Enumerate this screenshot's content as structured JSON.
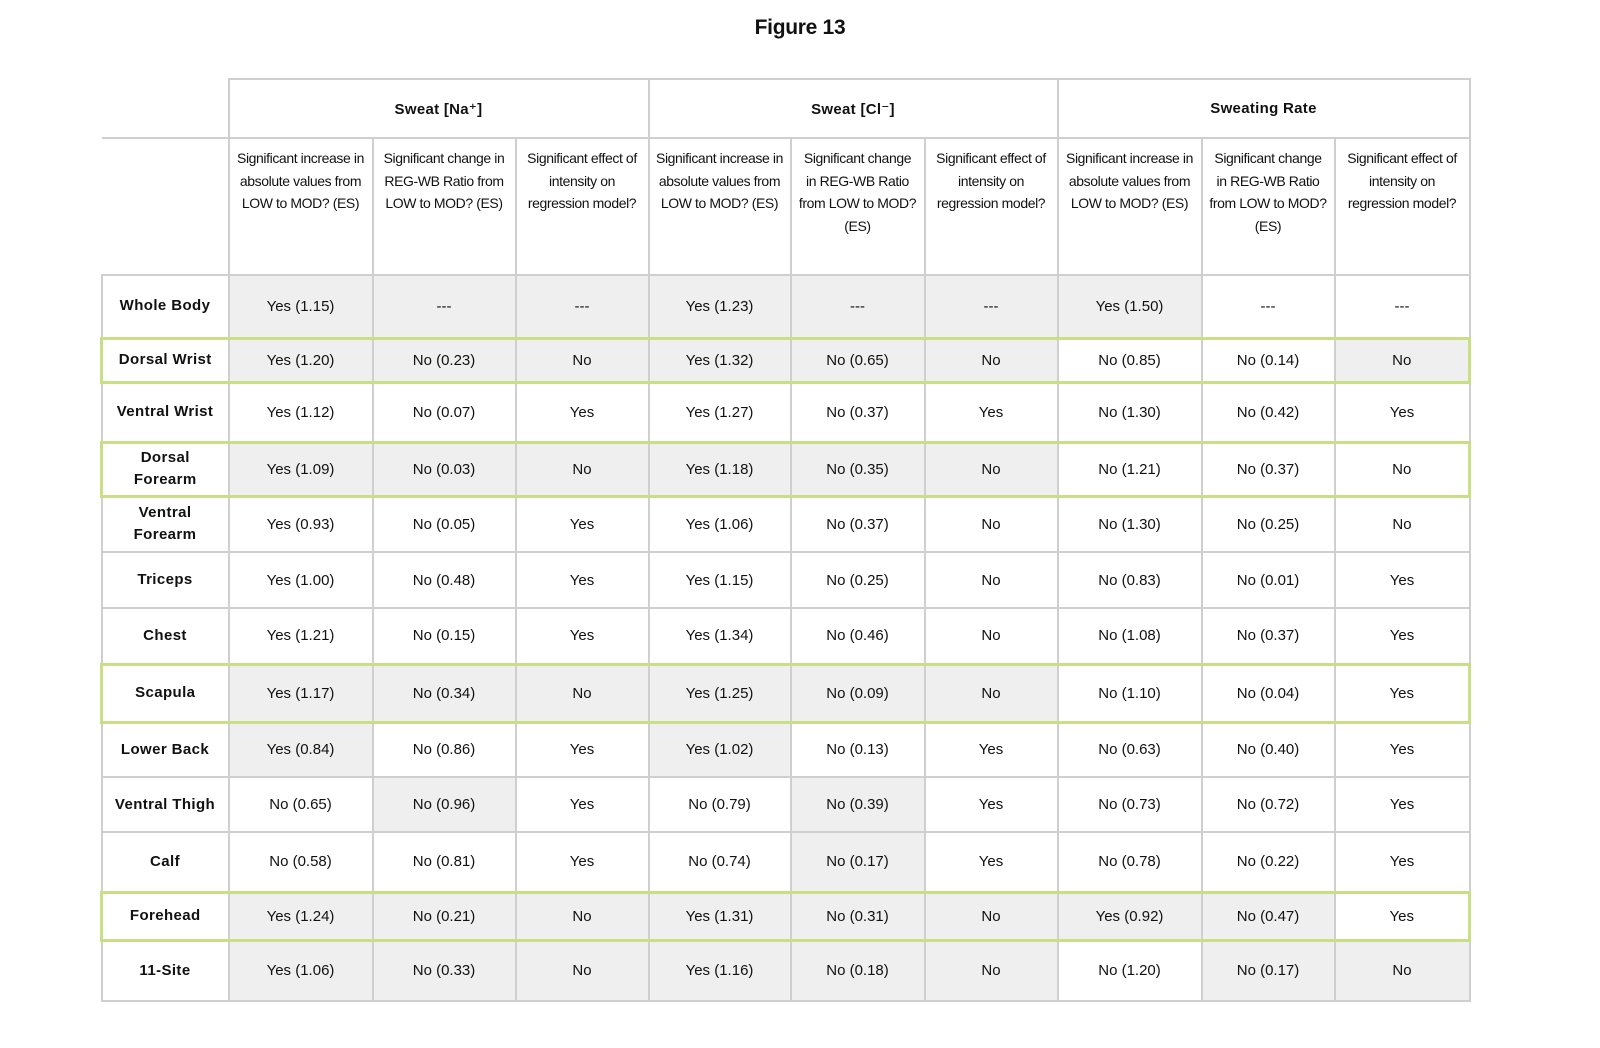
{
  "title": "Figure 13",
  "table": {
    "groups": [
      "Sweat [Na⁺]",
      "Sweat [Cl⁻]",
      "Sweating Rate"
    ],
    "subheaders": [
      "Significant increase in absolute values from LOW to MOD? (ES)",
      "Significant change in REG-WB Ratio from LOW to MOD? (ES)",
      "Significant effect of intensity on regression model?",
      "Significant increase in absolute values from LOW to MOD? (ES)",
      "Significant change in REG-WB Ratio from LOW to MOD? (ES)",
      "Significant effect of intensity on regression model?",
      "Significant increase in absolute values from LOW to MOD? (ES)",
      "Significant change in REG-WB Ratio from LOW to MOD? (ES)",
      "Significant effect of intensity on regression model?"
    ],
    "rows": [
      {
        "label": "Whole Body",
        "cells": [
          "Yes (1.15)",
          "---",
          "---",
          "Yes (1.23)",
          "---",
          "---",
          "Yes (1.50)",
          "---",
          "---"
        ]
      },
      {
        "label": "Dorsal Wrist",
        "cells": [
          "Yes (1.20)",
          "No (0.23)",
          "No",
          "Yes (1.32)",
          "No (0.65)",
          "No",
          "No (0.85)",
          "No (0.14)",
          "No"
        ]
      },
      {
        "label": "Ventral Wrist",
        "cells": [
          "Yes (1.12)",
          "No (0.07)",
          "Yes",
          "Yes (1.27)",
          "No (0.37)",
          "Yes",
          "No (1.30)",
          "No (0.42)",
          "Yes"
        ]
      },
      {
        "label": "Dorsal Forearm",
        "cells": [
          "Yes (1.09)",
          "No (0.03)",
          "No",
          "Yes (1.18)",
          "No (0.35)",
          "No",
          "No (1.21)",
          "No (0.37)",
          "No"
        ]
      },
      {
        "label": "Ventral Forearm",
        "cells": [
          "Yes (0.93)",
          "No (0.05)",
          "Yes",
          "Yes (1.06)",
          "No (0.37)",
          "No",
          "No (1.30)",
          "No (0.25)",
          "No"
        ]
      },
      {
        "label": "Triceps",
        "cells": [
          "Yes (1.00)",
          "No (0.48)",
          "Yes",
          "Yes (1.15)",
          "No (0.25)",
          "No",
          "No (0.83)",
          "No (0.01)",
          "Yes"
        ]
      },
      {
        "label": "Chest",
        "cells": [
          "Yes (1.21)",
          "No (0.15)",
          "Yes",
          "Yes (1.34)",
          "No (0.46)",
          "No",
          "No (1.08)",
          "No (0.37)",
          "Yes"
        ]
      },
      {
        "label": "Scapula",
        "cells": [
          "Yes (1.17)",
          "No (0.34)",
          "No",
          "Yes (1.25)",
          "No (0.09)",
          "No",
          "No (1.10)",
          "No (0.04)",
          "Yes"
        ]
      },
      {
        "label": "Lower Back",
        "cells": [
          "Yes (0.84)",
          "No (0.86)",
          "Yes",
          "Yes (1.02)",
          "No (0.13)",
          "Yes",
          "No (0.63)",
          "No (0.40)",
          "Yes"
        ]
      },
      {
        "label": "Ventral Thigh",
        "cells": [
          "No (0.65)",
          "No (0.96)",
          "Yes",
          "No (0.79)",
          "No (0.39)",
          "Yes",
          "No (0.73)",
          "No (0.72)",
          "Yes"
        ]
      },
      {
        "label": "Calf",
        "cells": [
          "No (0.58)",
          "No (0.81)",
          "Yes",
          "No (0.74)",
          "No (0.17)",
          "Yes",
          "No (0.78)",
          "No (0.22)",
          "Yes"
        ]
      },
      {
        "label": "Forehead",
        "cells": [
          "Yes (1.24)",
          "No (0.21)",
          "No",
          "Yes (1.31)",
          "No (0.31)",
          "No",
          "Yes (0.92)",
          "No (0.47)",
          "Yes"
        ]
      },
      {
        "label": "11-Site",
        "cells": [
          "Yes (1.06)",
          "No (0.33)",
          "No",
          "Yes (1.16)",
          "No (0.18)",
          "No",
          "No (1.20)",
          "No (0.17)",
          "No"
        ]
      }
    ]
  }
}
